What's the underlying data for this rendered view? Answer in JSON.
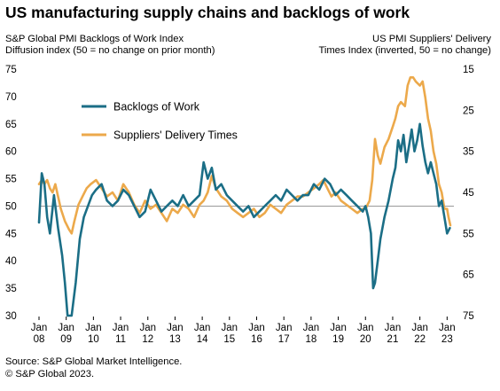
{
  "header": {
    "title": "US manufacturing supply chains and backlogs of work",
    "left_axis_line1": "S&P Global PMI Backlogs of Work Index",
    "left_axis_line2": "Diffusion index (50 = no change on prior month)",
    "right_axis_line1": "US PMI Suppliers' Delivery",
    "right_axis_line2": "Times Index (inverted, 50 = no change)"
  },
  "footer": {
    "source": "Source: S&P Global Market Intelligence.",
    "copyright": "© S&P Global 2023."
  },
  "colors": {
    "backlogs": "#1b6e86",
    "delivery": "#eca94b",
    "reference_line": "#9a9a9a"
  },
  "chart_data": {
    "type": "line",
    "x_tick_labels": [
      {
        "month": "Jan",
        "year": "08"
      },
      {
        "month": "Jan",
        "year": "09"
      },
      {
        "month": "Jan",
        "year": "10"
      },
      {
        "month": "Jan",
        "year": "11"
      },
      {
        "month": "Jan",
        "year": "12"
      },
      {
        "month": "Jan",
        "year": "13"
      },
      {
        "month": "Jan",
        "year": "14"
      },
      {
        "month": "Jan",
        "year": "15"
      },
      {
        "month": "Jan",
        "year": "16"
      },
      {
        "month": "Jan",
        "year": "17"
      },
      {
        "month": "Jan",
        "year": "18"
      },
      {
        "month": "Jan",
        "year": "19"
      },
      {
        "month": "Jan",
        "year": "20"
      },
      {
        "month": "Jan",
        "year": "21"
      },
      {
        "month": "Jan",
        "year": "22"
      },
      {
        "month": "Jan",
        "year": "23"
      }
    ],
    "xlim": [
      2008.0,
      2023.25
    ],
    "y_left": {
      "ylim": [
        30,
        75
      ],
      "ticks": [
        30,
        35,
        40,
        45,
        50,
        55,
        60,
        65,
        70,
        75
      ]
    },
    "y_right": {
      "ylim": [
        75,
        15
      ],
      "inverted": true,
      "ticks": [
        15,
        25,
        35,
        45,
        55,
        65,
        75
      ]
    },
    "reference_line": {
      "axis": "left",
      "value": 50
    },
    "legend": [
      {
        "label": "Backlogs of Work",
        "series": "backlogs"
      },
      {
        "label": "Suppliers' Delivery Times",
        "series": "delivery"
      }
    ],
    "series": [
      {
        "id": "backlogs",
        "axis": "left",
        "x": [
          2008.0,
          2008.1,
          2008.2,
          2008.3,
          2008.4,
          2008.55,
          2008.7,
          2008.85,
          2008.95,
          2009.05,
          2009.2,
          2009.35,
          2009.5,
          2009.65,
          2009.8,
          2009.95,
          2010.1,
          2010.3,
          2010.5,
          2010.7,
          2010.9,
          2011.1,
          2011.3,
          2011.5,
          2011.7,
          2011.9,
          2012.1,
          2012.3,
          2012.5,
          2012.7,
          2012.9,
          2013.1,
          2013.3,
          2013.5,
          2013.7,
          2013.9,
          2014.05,
          2014.2,
          2014.35,
          2014.5,
          2014.7,
          2014.9,
          2015.1,
          2015.3,
          2015.5,
          2015.7,
          2015.9,
          2016.1,
          2016.3,
          2016.5,
          2016.7,
          2016.9,
          2017.1,
          2017.3,
          2017.5,
          2017.7,
          2017.9,
          2018.1,
          2018.3,
          2018.5,
          2018.7,
          2018.9,
          2019.1,
          2019.3,
          2019.5,
          2019.7,
          2019.9,
          2020.0,
          2020.1,
          2020.2,
          2020.28,
          2020.35,
          2020.45,
          2020.55,
          2020.7,
          2020.85,
          2021.0,
          2021.1,
          2021.2,
          2021.3,
          2021.4,
          2021.5,
          2021.6,
          2021.7,
          2021.8,
          2021.9,
          2022.0,
          2022.1,
          2022.2,
          2022.3,
          2022.4,
          2022.5,
          2022.6,
          2022.7,
          2022.8,
          2022.9,
          2023.0,
          2023.1
        ],
        "values": [
          47,
          56,
          54,
          48,
          45,
          52,
          46,
          41,
          36,
          30,
          30,
          36,
          44,
          48,
          50,
          52,
          53,
          54,
          51,
          50,
          51,
          53,
          52,
          50,
          48,
          49,
          53,
          51,
          49,
          50,
          51,
          50,
          52,
          50,
          51,
          52,
          58,
          55,
          57,
          53,
          54,
          52,
          51,
          50,
          49,
          50,
          48,
          49,
          50,
          51,
          52,
          51,
          53,
          52,
          51,
          52,
          52,
          54,
          53,
          55,
          54,
          52,
          53,
          52,
          51,
          50,
          49,
          50,
          48,
          45,
          35,
          36,
          40,
          44,
          48,
          51,
          55,
          57,
          62,
          60,
          63,
          58,
          61,
          64,
          60,
          62,
          65,
          61,
          58,
          56,
          58,
          56,
          54,
          50,
          51,
          48,
          45,
          46
        ]
      },
      {
        "id": "delivery",
        "axis": "right",
        "x": [
          2008.0,
          2008.1,
          2008.2,
          2008.3,
          2008.4,
          2008.5,
          2008.6,
          2008.7,
          2008.8,
          2008.95,
          2009.1,
          2009.2,
          2009.3,
          2009.45,
          2009.6,
          2009.75,
          2009.9,
          2010.1,
          2010.3,
          2010.5,
          2010.7,
          2010.9,
          2011.1,
          2011.3,
          2011.5,
          2011.7,
          2011.9,
          2012.1,
          2012.3,
          2012.5,
          2012.7,
          2012.9,
          2013.1,
          2013.3,
          2013.5,
          2013.7,
          2013.9,
          2014.05,
          2014.2,
          2014.35,
          2014.5,
          2014.7,
          2014.9,
          2015.1,
          2015.3,
          2015.5,
          2015.7,
          2015.9,
          2016.1,
          2016.3,
          2016.5,
          2016.7,
          2016.9,
          2017.1,
          2017.3,
          2017.5,
          2017.7,
          2017.9,
          2018.1,
          2018.3,
          2018.45,
          2018.6,
          2018.75,
          2018.9,
          2019.1,
          2019.3,
          2019.5,
          2019.7,
          2019.9,
          2020.0,
          2020.15,
          2020.25,
          2020.35,
          2020.45,
          2020.55,
          2020.7,
          2020.85,
          2021.0,
          2021.1,
          2021.2,
          2021.3,
          2021.45,
          2021.55,
          2021.65,
          2021.75,
          2021.85,
          2022.0,
          2022.1,
          2022.2,
          2022.3,
          2022.4,
          2022.5,
          2022.6,
          2022.7,
          2022.8,
          2022.9,
          2023.0,
          2023.05,
          2023.12
        ],
        "values": [
          43,
          42,
          43,
          42,
          44,
          45,
          43,
          46,
          49,
          52,
          54,
          55,
          52,
          48,
          46,
          44,
          43,
          42,
          44,
          46,
          45,
          47,
          43,
          45,
          48,
          50,
          47,
          49,
          48,
          50,
          52,
          49,
          50,
          48,
          49,
          51,
          48,
          47,
          45,
          41,
          44,
          46,
          47,
          49,
          50,
          51,
          50,
          49,
          51,
          50,
          48,
          49,
          50,
          48,
          47,
          46,
          46,
          45,
          44,
          43,
          42,
          44,
          46,
          45,
          47,
          48,
          49,
          50,
          49,
          49,
          47,
          42,
          32,
          36,
          38,
          34,
          32,
          29,
          27,
          24,
          23,
          24,
          19,
          17,
          17,
          18,
          19,
          18,
          22,
          27,
          30,
          35,
          38,
          43,
          45,
          49,
          49,
          51,
          53
        ]
      }
    ]
  }
}
